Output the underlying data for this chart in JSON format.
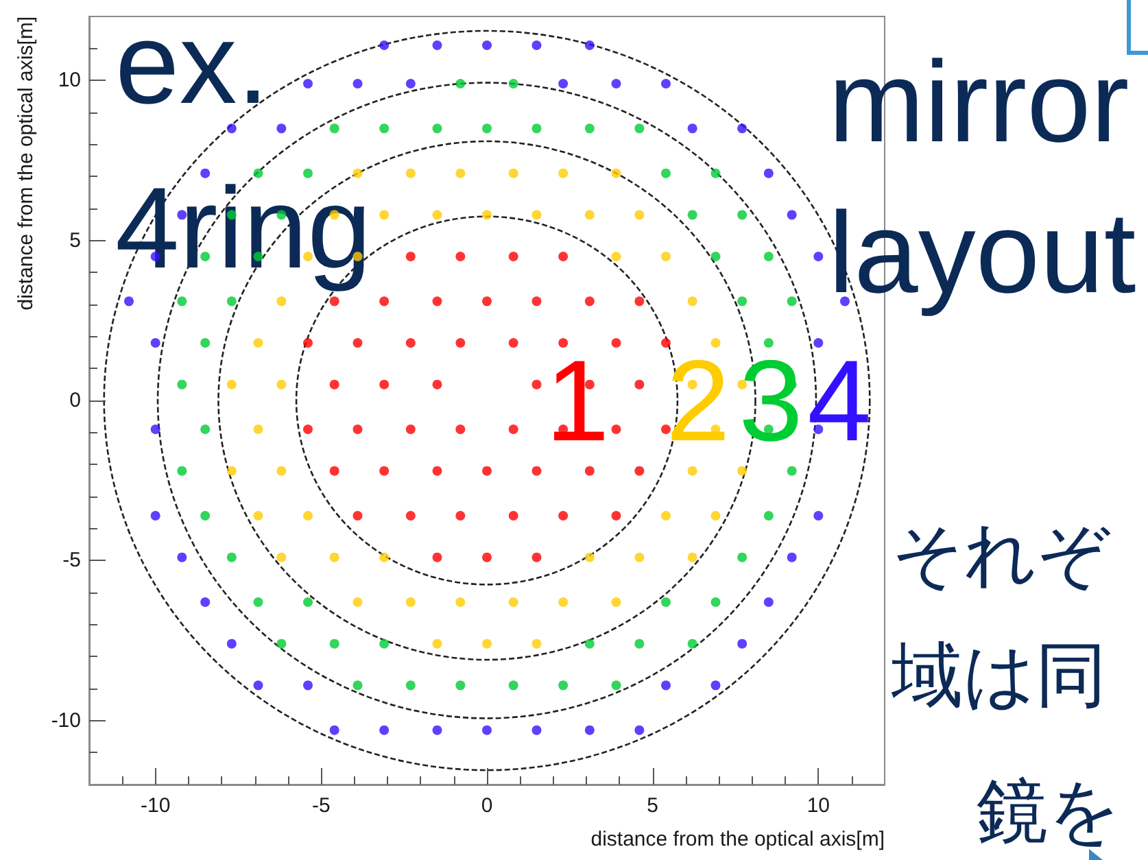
{
  "chart_data": {
    "type": "scatter",
    "xlabel": "distance from the optical axis[m]",
    "ylabel": "distance from the optical axis[m]",
    "annotations": [
      "ex.",
      "4ring",
      "mirror",
      "layout",
      "それぞ",
      "域は同",
      "鏡を"
    ],
    "xlim": [
      -12,
      12
    ],
    "ylim": [
      -12,
      12
    ],
    "xticks": [
      {
        "value": -11,
        "label": null
      },
      -10,
      {
        "value": -9,
        "label": null
      },
      {
        "value": -8,
        "label": null
      },
      {
        "value": -7,
        "label": null
      },
      {
        "value": -6,
        "label": null
      },
      -5,
      {
        "value": -4,
        "label": null
      },
      {
        "value": -3,
        "label": null
      },
      {
        "value": -2,
        "label": null
      },
      {
        "value": -1,
        "label": null
      },
      0,
      {
        "value": 1,
        "label": null
      },
      {
        "value": 2,
        "label": null
      },
      {
        "value": 3,
        "label": null
      },
      {
        "value": 4,
        "label": null
      },
      5,
      {
        "value": 6,
        "label": null
      },
      {
        "value": 7,
        "label": null
      },
      {
        "value": 8,
        "label": null
      },
      {
        "value": 9,
        "label": null
      },
      10,
      {
        "value": 11,
        "label": null
      }
    ],
    "yticks": [
      {
        "value": -11,
        "label": null
      },
      -10,
      {
        "value": -9,
        "label": null
      },
      {
        "value": -8,
        "label": null
      },
      {
        "value": -7,
        "label": null
      },
      {
        "value": -6,
        "label": null
      },
      -5,
      {
        "value": -4,
        "label": null
      },
      {
        "value": -3,
        "label": null
      },
      {
        "value": -2,
        "label": null
      },
      {
        "value": -1,
        "label": null
      },
      0,
      {
        "value": 1,
        "label": null
      },
      {
        "value": 2,
        "label": null
      },
      {
        "value": 3,
        "label": null
      },
      {
        "value": 4,
        "label": null
      },
      5,
      {
        "value": 6,
        "label": null
      },
      {
        "value": 7,
        "label": null
      },
      {
        "value": 8,
        "label": null
      },
      {
        "value": 9,
        "label": null
      },
      10,
      {
        "value": 11,
        "label": null
      }
    ],
    "series": [
      {
        "name": "1",
        "color": "#ff0000",
        "marker": "circle",
        "x": [
          -2.3,
          -0.8,
          0.8,
          2.3,
          -4.6,
          -3.1,
          -1.5,
          0,
          1.5,
          3.1,
          4.6,
          -5.4,
          -3.9,
          -2.3,
          -0.8,
          0.8,
          2.3,
          3.9,
          5.4,
          -4.6,
          -3.1,
          -1.5,
          1.5,
          3.1,
          4.6,
          -5.4,
          -3.9,
          -2.3,
          -0.8,
          0.8,
          2.3,
          3.9,
          5.4,
          -4.6,
          -3.1,
          -1.5,
          0,
          1.5,
          3.1,
          4.6,
          -3.9,
          -2.3,
          -0.8,
          0.8,
          2.3,
          3.9,
          -1.5,
          0,
          1.5
        ],
        "values": [
          4.5,
          4.5,
          4.5,
          4.5,
          3.1,
          3.1,
          3.1,
          3.1,
          3.1,
          3.1,
          3.1,
          1.8,
          1.8,
          1.8,
          1.8,
          1.8,
          1.8,
          1.8,
          1.8,
          0.5,
          0.5,
          0.5,
          0.5,
          0.5,
          0.5,
          -0.9,
          -0.9,
          -0.9,
          -0.9,
          -0.9,
          -0.9,
          -0.9,
          -0.9,
          -2.2,
          -2.2,
          -2.2,
          -2.2,
          -2.2,
          -2.2,
          -2.2,
          -3.6,
          -3.6,
          -3.6,
          -3.6,
          -3.6,
          -3.6,
          -4.9,
          -4.9,
          -4.9
        ]
      },
      {
        "name": "2",
        "color": "#ffcc00",
        "marker": "circle",
        "x": [
          -3.9,
          -2.3,
          -0.8,
          0.8,
          2.3,
          3.9,
          -4.6,
          -3.1,
          -1.5,
          0,
          1.5,
          3.1,
          4.6,
          -5.4,
          -3.9,
          3.9,
          5.4,
          -6.2,
          6.2,
          -6.9,
          6.9,
          -7.7,
          -6.2,
          6.2,
          7.7,
          -6.9,
          6.9,
          -7.7,
          -6.2,
          6.2,
          7.7,
          -6.9,
          -5.4,
          5.4,
          6.9,
          -6.2,
          -4.6,
          -3.1,
          3.1,
          4.6,
          6.2,
          -3.9,
          -2.3,
          -0.8,
          0.8,
          2.3,
          3.9,
          -1.5,
          0,
          1.5
        ],
        "values": [
          7.1,
          7.1,
          7.1,
          7.1,
          7.1,
          7.1,
          5.8,
          5.8,
          5.8,
          5.8,
          5.8,
          5.8,
          5.8,
          4.5,
          4.5,
          4.5,
          4.5,
          3.1,
          3.1,
          1.8,
          1.8,
          0.5,
          0.5,
          0.5,
          0.5,
          -0.9,
          -0.9,
          -2.2,
          -2.2,
          -2.2,
          -2.2,
          -3.6,
          -3.6,
          -3.6,
          -3.6,
          -4.9,
          -4.9,
          -4.9,
          -4.9,
          -4.9,
          -4.9,
          -6.3,
          -6.3,
          -6.3,
          -6.3,
          -6.3,
          -6.3,
          -7.6,
          -7.6,
          -7.6
        ]
      },
      {
        "name": "3",
        "color": "#00cc33",
        "marker": "circle",
        "x": [
          -0.8,
          0.8,
          -4.6,
          -3.1,
          -1.5,
          0,
          1.5,
          3.1,
          4.6,
          -6.9,
          -5.4,
          5.4,
          6.9,
          -7.7,
          -6.2,
          6.2,
          7.7,
          -8.5,
          -6.9,
          6.9,
          8.5,
          -9.2,
          -7.7,
          7.7,
          9.2,
          -8.5,
          8.5,
          -9.2,
          9.2,
          -8.5,
          8.5,
          -9.2,
          9.2,
          -8.5,
          8.5,
          -7.7,
          7.7,
          -6.9,
          -5.4,
          5.4,
          6.9,
          -6.2,
          -4.6,
          -3.1,
          3.1,
          4.6,
          6.2,
          -3.9,
          -2.3,
          -0.8,
          0.8,
          2.3,
          3.9
        ],
        "values": [
          9.9,
          9.9,
          8.5,
          8.5,
          8.5,
          8.5,
          8.5,
          8.5,
          8.5,
          7.1,
          7.1,
          7.1,
          7.1,
          5.8,
          5.8,
          5.8,
          5.8,
          4.5,
          4.5,
          4.5,
          4.5,
          3.1,
          3.1,
          3.1,
          3.1,
          1.8,
          1.8,
          0.5,
          0.5,
          -0.9,
          -0.9,
          -2.2,
          -2.2,
          -3.6,
          -3.6,
          -4.9,
          -4.9,
          -6.3,
          -6.3,
          -6.3,
          -6.3,
          -7.6,
          -7.6,
          -7.6,
          -7.6,
          -7.6,
          -7.6,
          -8.9,
          -8.9,
          -8.9,
          -8.9,
          -8.9,
          -8.9
        ]
      },
      {
        "name": "4",
        "color": "#3311ff",
        "marker": "circle",
        "x": [
          -3.1,
          -1.5,
          0,
          1.5,
          3.1,
          -5.4,
          -3.9,
          -2.3,
          2.3,
          3.9,
          5.4,
          -7.7,
          -6.2,
          6.2,
          7.7,
          -8.5,
          8.5,
          -9.2,
          9.2,
          -10.0,
          10.0,
          -10.8,
          10.8,
          -10.0,
          10.0,
          -10.0,
          10.0,
          -10.0,
          10.0,
          -9.2,
          9.2,
          -8.5,
          8.5,
          -7.7,
          7.7,
          -6.9,
          -5.4,
          5.4,
          6.9,
          -4.6,
          -3.1,
          -1.5,
          0,
          1.5,
          3.1,
          4.6
        ],
        "values": [
          11.1,
          11.1,
          11.1,
          11.1,
          11.1,
          9.9,
          9.9,
          9.9,
          9.9,
          9.9,
          9.9,
          8.5,
          8.5,
          8.5,
          8.5,
          7.1,
          7.1,
          5.8,
          5.8,
          4.5,
          4.5,
          3.1,
          3.1,
          1.8,
          1.8,
          -0.9,
          -0.9,
          -3.6,
          -3.6,
          -4.9,
          -4.9,
          -6.3,
          -6.3,
          -7.6,
          -7.6,
          -8.9,
          -8.9,
          -8.9,
          -8.9,
          -10.3,
          -10.3,
          -10.3,
          -10.3,
          -10.3,
          -10.3,
          -10.3
        ]
      }
    ]
  }
}
